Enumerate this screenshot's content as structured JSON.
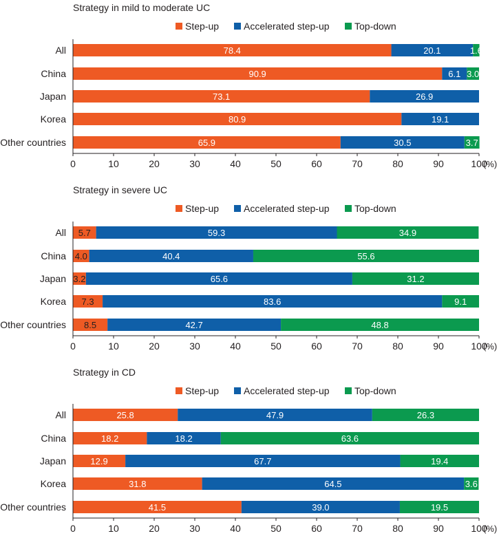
{
  "colors": {
    "step_up": "#ee5a24",
    "accelerated": "#0f5fa8",
    "top_down": "#0b9a4f",
    "axis": "#231f20",
    "light_text": "#ffffff",
    "dark_text": "#231f20"
  },
  "chart_data": [
    {
      "type": "bar",
      "orientation": "horizontal-stacked",
      "title": "Strategy in mild to moderate UC",
      "categories": [
        "All",
        "China",
        "Japan",
        "Korea",
        "Other countries"
      ],
      "series": [
        {
          "name": "Step-up",
          "values": [
            78.4,
            90.9,
            73.1,
            80.9,
            65.9
          ]
        },
        {
          "name": "Accelerated step-up",
          "values": [
            20.1,
            6.1,
            26.9,
            19.1,
            30.5
          ]
        },
        {
          "name": "Top-down",
          "values": [
            1.6,
            3.0,
            0,
            0,
            3.7
          ]
        }
      ],
      "xlim": [
        0,
        100
      ],
      "xticks": [
        0,
        10,
        20,
        30,
        40,
        50,
        60,
        70,
        80,
        90,
        100
      ],
      "xunit": "(%)",
      "legend": "top"
    },
    {
      "type": "bar",
      "orientation": "horizontal-stacked",
      "title": "Strategy in severe UC",
      "categories": [
        "All",
        "China",
        "Japan",
        "Korea",
        "Other countries"
      ],
      "series": [
        {
          "name": "Step-up",
          "values": [
            5.7,
            4.0,
            3.2,
            7.3,
            8.5
          ]
        },
        {
          "name": "Accelerated step-up",
          "values": [
            59.3,
            40.4,
            65.6,
            83.6,
            42.7
          ]
        },
        {
          "name": "Top-down",
          "values": [
            34.9,
            55.6,
            31.2,
            9.1,
            48.8
          ]
        }
      ],
      "xlim": [
        0,
        100
      ],
      "xticks": [
        0,
        10,
        20,
        30,
        40,
        50,
        60,
        70,
        80,
        90,
        100
      ],
      "xunit": "(%)",
      "legend": "top"
    },
    {
      "type": "bar",
      "orientation": "horizontal-stacked",
      "title": "Strategy in CD",
      "categories": [
        "All",
        "China",
        "Japan",
        "Korea",
        "Other countries"
      ],
      "series": [
        {
          "name": "Step-up",
          "values": [
            25.8,
            18.2,
            12.9,
            31.8,
            41.5
          ]
        },
        {
          "name": "Accelerated step-up",
          "values": [
            47.9,
            18.2,
            67.7,
            64.5,
            39.0
          ]
        },
        {
          "name": "Top-down",
          "values": [
            26.3,
            63.6,
            19.4,
            3.6,
            19.5
          ]
        }
      ],
      "xlim": [
        0,
        100
      ],
      "xticks": [
        0,
        10,
        20,
        30,
        40,
        50,
        60,
        70,
        80,
        90,
        100
      ],
      "xunit": "(%)",
      "legend": "top"
    }
  ]
}
